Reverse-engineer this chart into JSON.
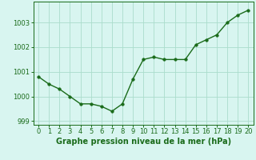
{
  "x": [
    0,
    1,
    2,
    3,
    4,
    5,
    6,
    7,
    8,
    9,
    10,
    11,
    12,
    13,
    14,
    15,
    16,
    17,
    18,
    19,
    20
  ],
  "y": [
    1000.8,
    1000.5,
    1000.3,
    1000.0,
    999.7,
    999.7,
    999.6,
    999.4,
    999.7,
    1000.7,
    1001.5,
    1001.6,
    1001.5,
    1001.5,
    1001.5,
    1002.1,
    1002.3,
    1002.5,
    1003.0,
    1003.3,
    1003.5
  ],
  "line_color": "#1a6b1a",
  "marker_color": "#1a6b1a",
  "bg_color": "#d8f5f0",
  "grid_color": "#aaddcc",
  "xlabel": "Graphe pression niveau de la mer (hPa)",
  "xlabel_fontsize": 7,
  "xlim": [
    -0.5,
    20.5
  ],
  "ylim": [
    998.85,
    1003.85
  ],
  "yticks": [
    999,
    1000,
    1001,
    1002,
    1003
  ],
  "xticks": [
    0,
    1,
    2,
    3,
    4,
    5,
    6,
    7,
    8,
    9,
    10,
    11,
    12,
    13,
    14,
    15,
    16,
    17,
    18,
    19,
    20
  ],
  "tick_fontsize": 6,
  "marker_size": 2.5,
  "line_width": 1.0
}
